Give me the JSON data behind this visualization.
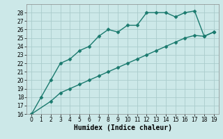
{
  "line1_x": [
    0,
    1,
    2,
    3,
    4,
    5,
    6,
    7,
    8,
    9,
    10,
    11,
    12,
    13,
    14,
    15,
    16,
    17,
    18,
    19
  ],
  "line1_y": [
    16,
    18,
    20,
    22,
    22.5,
    23.5,
    24,
    25.2,
    26,
    25.7,
    26.5,
    26.5,
    28,
    28,
    28,
    27.5,
    28,
    28.2,
    25.2,
    25.7
  ],
  "line2_x": [
    0,
    2,
    3,
    4,
    5,
    6,
    7,
    8,
    9,
    10,
    11,
    12,
    13,
    14,
    15,
    16,
    17,
    18,
    19
  ],
  "line2_y": [
    16,
    17.5,
    18.5,
    19.0,
    19.5,
    20.0,
    20.5,
    21.0,
    21.5,
    22.0,
    22.5,
    23.0,
    23.5,
    24.0,
    24.5,
    25.0,
    25.3,
    25.2,
    25.7
  ],
  "color": "#1a7a6e",
  "bg_color": "#cce8e8",
  "grid_color": "#aacccc",
  "xlabel": "Humidex (Indice chaleur)",
  "ylim": [
    16,
    29
  ],
  "xlim": [
    -0.5,
    19.5
  ],
  "yticks": [
    16,
    17,
    18,
    19,
    20,
    21,
    22,
    23,
    24,
    25,
    26,
    27,
    28
  ],
  "xticks": [
    0,
    1,
    2,
    3,
    4,
    5,
    6,
    7,
    8,
    9,
    10,
    11,
    12,
    13,
    14,
    15,
    16,
    17,
    18,
    19
  ],
  "marker": "D",
  "markersize": 2.5,
  "linewidth": 1.0,
  "xlabel_fontsize": 7,
  "tick_fontsize": 5.5
}
